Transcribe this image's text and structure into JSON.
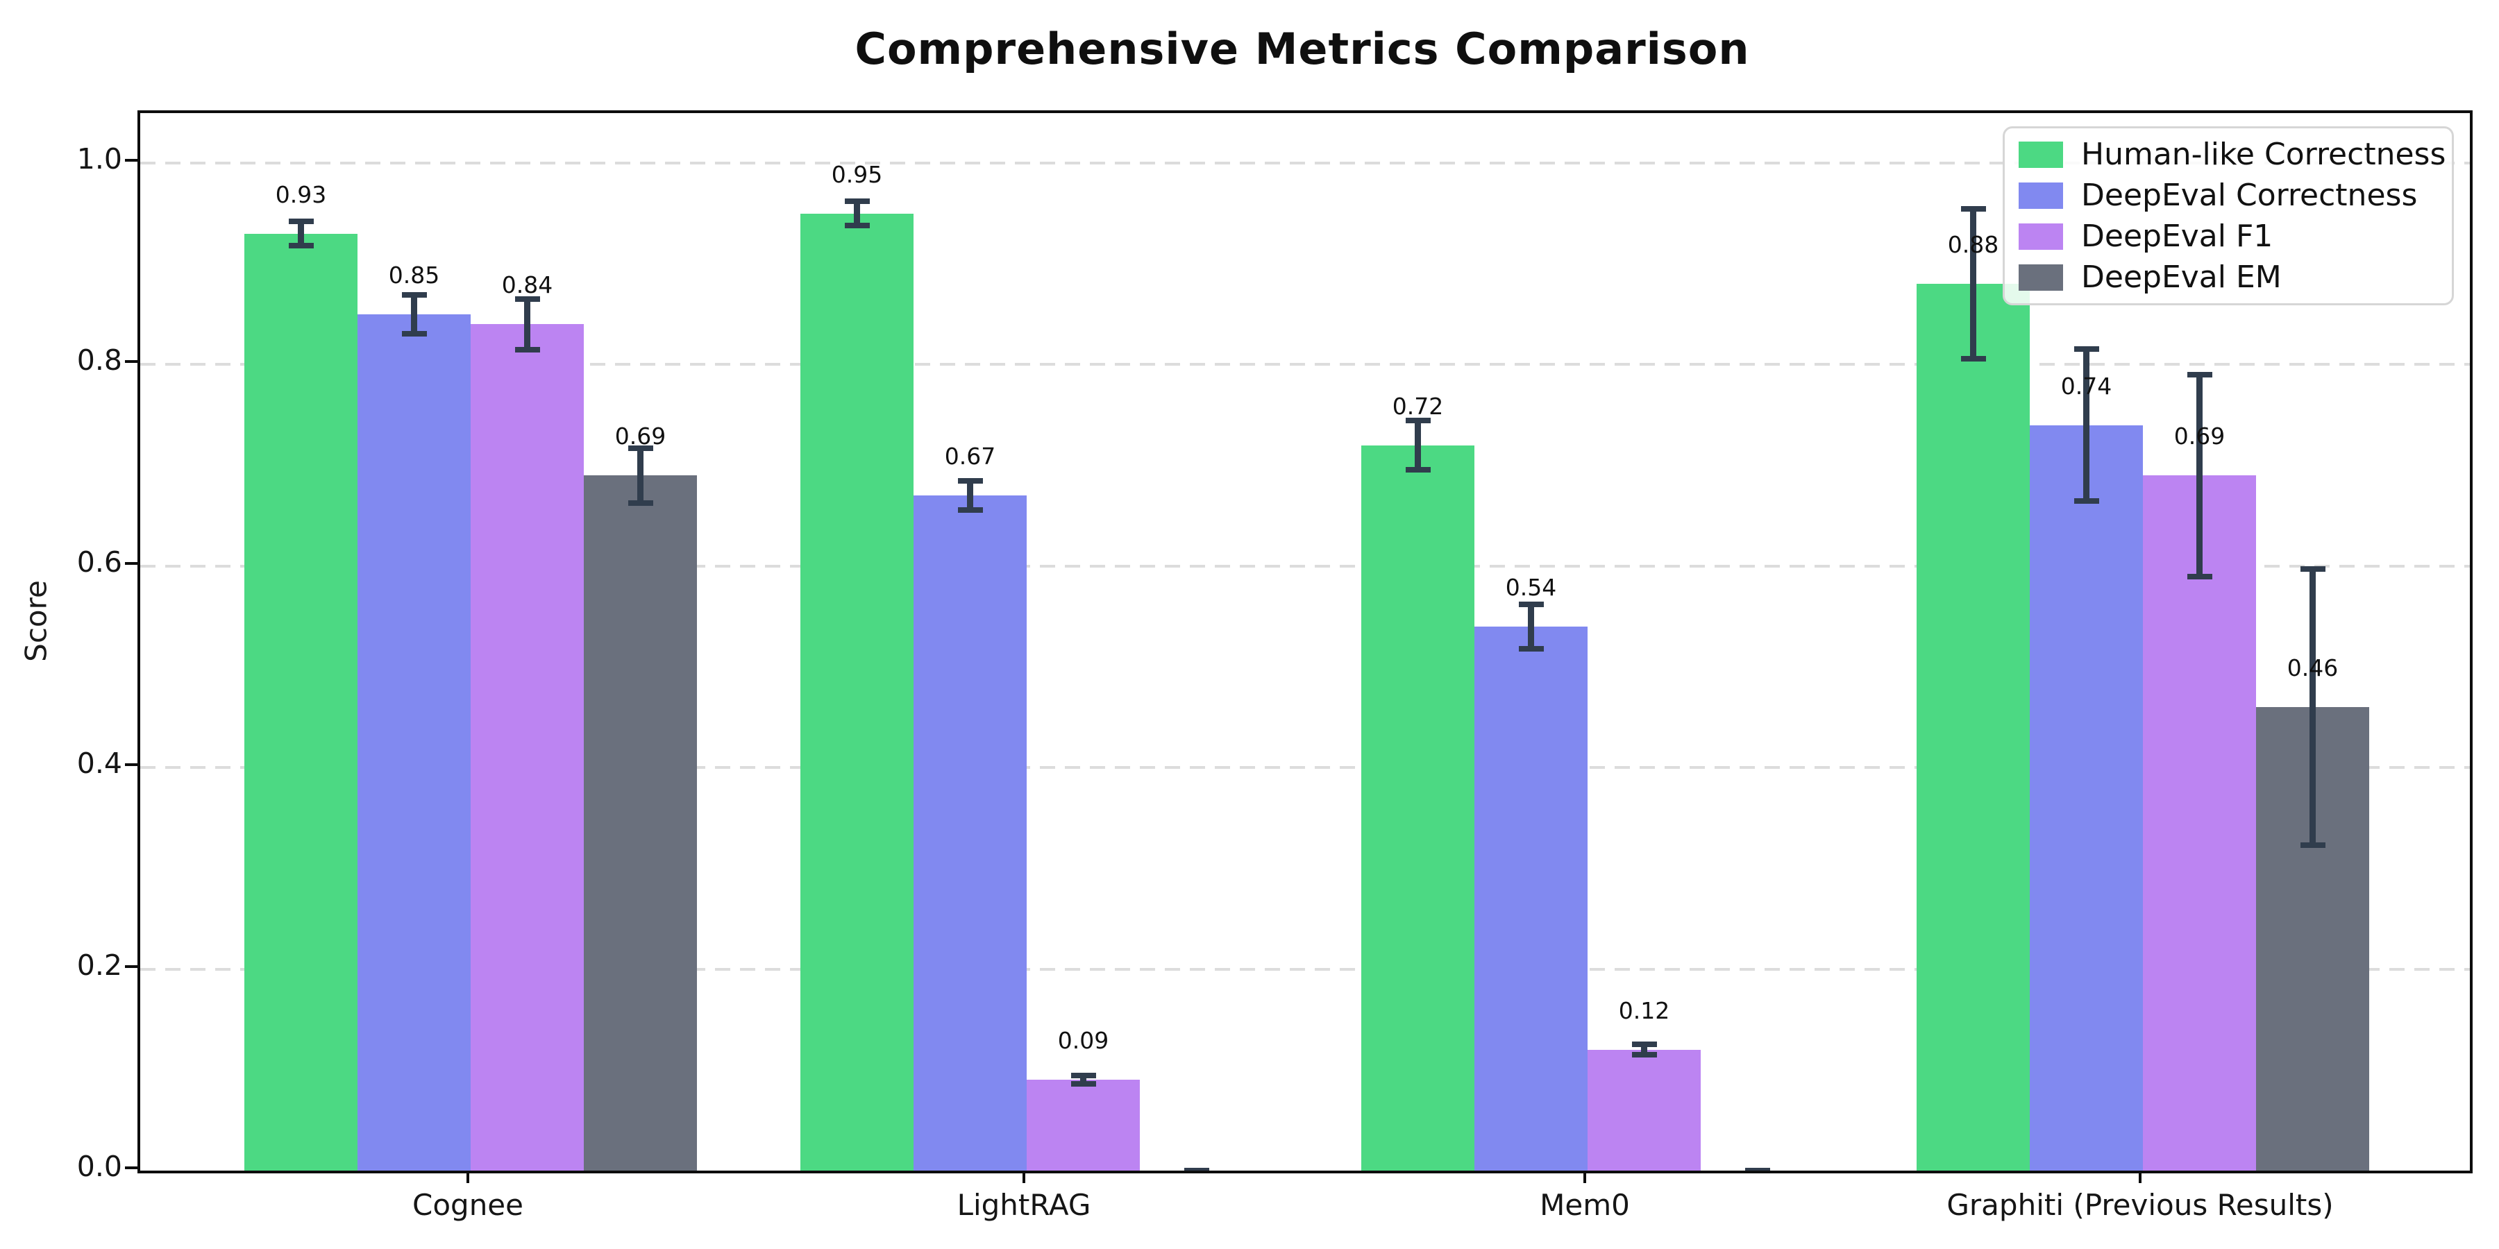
{
  "chart_data": {
    "type": "bar",
    "title": "Comprehensive Metrics Comparison",
    "xlabel": "",
    "ylabel": "Score",
    "categories": [
      "Cognee",
      "LightRAG",
      "Mem0",
      "Graphiti (Previous Results)"
    ],
    "series": [
      {
        "name": "Human-like Correctness",
        "color": "#4cd983",
        "values": [
          0.93,
          0.95,
          0.72,
          0.88
        ],
        "errors": [
          0.015,
          0.015,
          0.027,
          0.077
        ]
      },
      {
        "name": "DeepEval Correctness",
        "color": "#8189f0",
        "values": [
          0.85,
          0.67,
          0.54,
          0.74
        ],
        "errors": [
          0.022,
          0.017,
          0.025,
          0.078
        ]
      },
      {
        "name": "DeepEval F1",
        "color": "#bc84f2",
        "values": [
          0.84,
          0.09,
          0.12,
          0.69
        ],
        "errors": [
          0.028,
          0.007,
          0.008,
          0.103
        ]
      },
      {
        "name": "DeepEval EM",
        "color": "#6a707d",
        "values": [
          0.69,
          0.0,
          0.0,
          0.46
        ],
        "errors": [
          0.03,
          0.003,
          0.003,
          0.14
        ]
      }
    ],
    "bar_labels_shown_for_nonzero_only": true,
    "bar_label_format": "two decimals",
    "ylim": [
      0,
      1.05
    ],
    "yticks": [
      0.0,
      0.2,
      0.4,
      0.6,
      0.8,
      1.0
    ],
    "grid": "horizontal dashed",
    "grid_color": "#dcdcdc",
    "error_bar_color": "#303d4d",
    "legend_position": "upper right",
    "legend_labels": [
      "Human-like Correctness",
      "DeepEval Correctness",
      "DeepEval F1",
      "DeepEval EM"
    ]
  }
}
